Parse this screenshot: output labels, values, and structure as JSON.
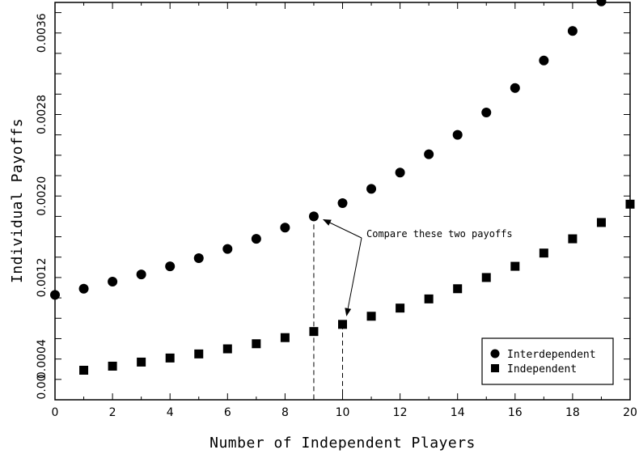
{
  "chart_data": {
    "type": "scatter",
    "xlabel": "Number of Independent Players",
    "ylabel": "Individual Payoffs",
    "xlim": [
      0,
      20
    ],
    "ylim": [
      0.0,
      0.0039
    ],
    "x_ticks": [
      0,
      2,
      4,
      6,
      8,
      10,
      12,
      14,
      16,
      18,
      20
    ],
    "y_ticks": [
      0.0,
      0.0004,
      0.0012,
      0.002,
      0.0028,
      0.0036
    ],
    "y_tick_labels": [
      "0.00",
      "0.0004",
      "0.0012",
      "0.0020",
      "0.0028",
      "0.0036"
    ],
    "grid": false,
    "legend_position": "bottom-right",
    "series": [
      {
        "name": "Interdependent",
        "marker": "circle",
        "x": [
          0,
          1,
          2,
          3,
          4,
          5,
          6,
          7,
          8,
          9,
          10,
          11,
          12,
          13,
          14,
          15,
          16,
          17,
          18,
          19
        ],
        "y": [
          0.00103,
          0.00109,
          0.00116,
          0.00123,
          0.00131,
          0.00139,
          0.00148,
          0.00158,
          0.00169,
          0.0018,
          0.00193,
          0.00207,
          0.00223,
          0.00241,
          0.0026,
          0.00282,
          0.00306,
          0.00333,
          0.00362,
          0.00391
        ]
      },
      {
        "name": "Independent",
        "marker": "square",
        "x": [
          1,
          2,
          3,
          4,
          5,
          6,
          7,
          8,
          9,
          10,
          11,
          12,
          13,
          14,
          15,
          16,
          17,
          18,
          19,
          20
        ],
        "y": [
          0.00029,
          0.00033,
          0.00037,
          0.00041,
          0.00045,
          0.0005,
          0.00055,
          0.00061,
          0.00067,
          0.00074,
          0.00082,
          0.0009,
          0.00099,
          0.00109,
          0.0012,
          0.00131,
          0.00144,
          0.00158,
          0.00174,
          0.00192
        ]
      }
    ],
    "annotations": [
      {
        "text": "Compare these two payoffs",
        "points": [
          [
            9,
            0.0018
          ],
          [
            10,
            0.00074
          ]
        ]
      }
    ]
  }
}
